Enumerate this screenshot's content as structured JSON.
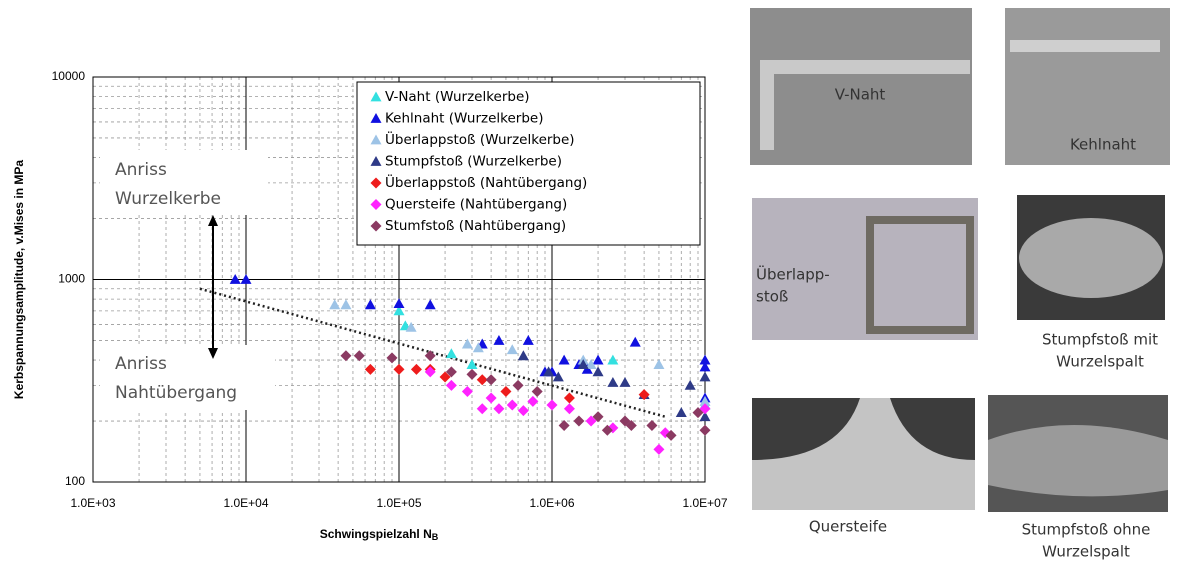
{
  "chart_data": {
    "type": "scatter",
    "log_x": true,
    "log_y": true,
    "grid": true,
    "minor_grid": true,
    "legend": "upper right",
    "xlabel": "Schwingspielzahl N",
    "xlabel_sub": "B",
    "ylabel": "Kerbspannungsamplitude, v.Mises in MPa",
    "xlim": [
      1000,
      10000000
    ],
    "ylim": [
      100,
      10000
    ],
    "xticks": [
      {
        "value": 1000,
        "label": "1.0E+03"
      },
      {
        "value": 10000,
        "label": "1.0E+04"
      },
      {
        "value": 100000,
        "label": "1.0E+05"
      },
      {
        "value": 1000000,
        "label": "1.0E+06"
      },
      {
        "value": 10000000,
        "label": "1.0E+07"
      }
    ],
    "yticks": [
      100,
      1000,
      10000
    ],
    "annotations": [
      {
        "lines": [
          "Anriss",
          "Wurzelkerbe"
        ]
      },
      {
        "lines": [
          "Anriss",
          "Nahtübergang"
        ]
      }
    ],
    "trend": {
      "x": [
        5000,
        5500000
      ],
      "values": [
        900,
        210
      ]
    },
    "series": [
      {
        "name": "V-Naht (Wurzelkerbe)",
        "color": "#33e0e0",
        "marker": "triangle",
        "x": [
          100000,
          110000,
          220000,
          300000,
          2500000,
          10000000
        ],
        "values": [
          700,
          590,
          430,
          380,
          400,
          240
        ]
      },
      {
        "name": "Kehlnaht (Wurzelkerbe)",
        "color": "#1010e0",
        "marker": "triangle",
        "x": [
          8500,
          10000,
          65000,
          100000,
          160000,
          350000,
          450000,
          700000,
          900000,
          1000000,
          1200000,
          1500000,
          1700000,
          2000000,
          3500000,
          10000000,
          10000000,
          10000000
        ],
        "values": [
          1000,
          1000,
          750,
          760,
          750,
          480,
          500,
          500,
          350,
          350,
          400,
          380,
          360,
          400,
          490,
          400,
          370,
          260
        ]
      },
      {
        "name": "Überlappstoß (Wurzelkerbe)",
        "color": "#9dc3e6",
        "marker": "triangle",
        "x": [
          38000,
          45000,
          120000,
          280000,
          330000,
          550000,
          1600000,
          1800000,
          5000000,
          10000000
        ],
        "values": [
          750,
          750,
          580,
          480,
          460,
          450,
          400,
          380,
          380,
          250
        ]
      },
      {
        "name": "Stumpfstoß (Wurzelkerbe)",
        "color": "#2e3a87",
        "marker": "triangle",
        "x": [
          650000,
          950000,
          1100000,
          1600000,
          2000000,
          2500000,
          3000000,
          4000000,
          7000000,
          8000000,
          10000000,
          10000000
        ],
        "values": [
          420,
          350,
          330,
          380,
          350,
          310,
          310,
          270,
          220,
          300,
          330,
          210
        ]
      },
      {
        "name": "Überlappstoß (Nahtübergang)",
        "color": "#ee1c1c",
        "marker": "diamond",
        "x": [
          65000,
          100000,
          130000,
          160000,
          200000,
          350000,
          500000,
          1300000,
          4000000
        ],
        "values": [
          360,
          360,
          360,
          360,
          330,
          320,
          280,
          260,
          270
        ]
      },
      {
        "name": "Quersteife (Nahtübergang)",
        "color": "#ff22ff",
        "marker": "diamond",
        "x": [
          160000,
          220000,
          280000,
          350000,
          400000,
          450000,
          550000,
          650000,
          750000,
          1000000,
          1300000,
          1800000,
          2500000,
          5000000,
          5500000,
          10000000
        ],
        "values": [
          350,
          300,
          280,
          230,
          260,
          230,
          240,
          225,
          250,
          240,
          230,
          200,
          185,
          145,
          175,
          230
        ]
      },
      {
        "name": "Stumfstoß (Nahtübergang)",
        "color": "#8b3a62",
        "marker": "diamond",
        "x": [
          45000,
          55000,
          90000,
          160000,
          220000,
          300000,
          400000,
          600000,
          800000,
          1200000,
          1500000,
          2000000,
          2300000,
          3000000,
          3300000,
          4500000,
          6000000,
          9000000,
          10000000
        ],
        "values": [
          420,
          420,
          410,
          420,
          350,
          340,
          320,
          300,
          280,
          190,
          200,
          210,
          180,
          200,
          190,
          190,
          170,
          220,
          180
        ]
      }
    ]
  },
  "photos": [
    {
      "label": [
        "V-Naht"
      ]
    },
    {
      "label": [
        "Kehlnaht"
      ]
    },
    {
      "label": [
        "Überlapp-",
        "stoß"
      ]
    },
    {
      "label": [
        "Stumpfstoß mit",
        "Wurzelspalt"
      ]
    },
    {
      "label": [
        "Quersteife"
      ]
    },
    {
      "label": [
        "Stumpfstoß ohne",
        "Wurzelspalt"
      ]
    }
  ]
}
